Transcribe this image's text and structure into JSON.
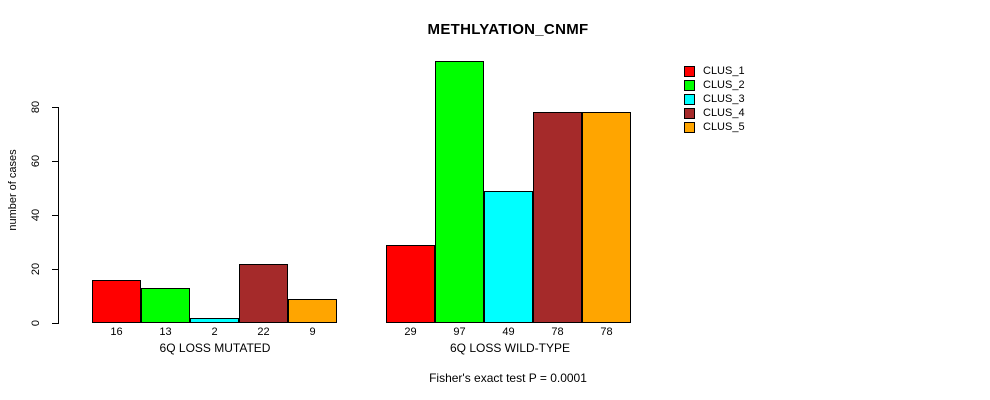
{
  "chart_data": {
    "type": "bar",
    "title": "METHLYATION_CNMF",
    "ylabel": "number of cases",
    "xlabel": "",
    "ylim": [
      0,
      80
    ],
    "yticks": [
      0,
      20,
      40,
      60,
      80
    ],
    "grid": false,
    "legend_position": "top-right",
    "groups": [
      "6Q LOSS MUTATED",
      "6Q LOSS WILD-TYPE"
    ],
    "series": [
      {
        "name": "CLUS_1",
        "color": "#FF0000",
        "values": [
          16,
          29
        ]
      },
      {
        "name": "CLUS_2",
        "color": "#00FF00",
        "values": [
          13,
          97
        ]
      },
      {
        "name": "CLUS_3",
        "color": "#00FFFF",
        "values": [
          2,
          49
        ]
      },
      {
        "name": "CLUS_4",
        "color": "#A52A2A",
        "values": [
          22,
          78
        ]
      },
      {
        "name": "CLUS_5",
        "color": "#FFA500",
        "values": [
          9,
          78
        ]
      }
    ],
    "bar_value_labels": [
      16,
      13,
      2,
      22,
      9,
      29,
      97,
      49,
      78,
      78
    ],
    "annotation": "Fisher's exact test P = 0.0001",
    "bar_outline_color": "#000000",
    "background_color": "#FFFFFF"
  }
}
